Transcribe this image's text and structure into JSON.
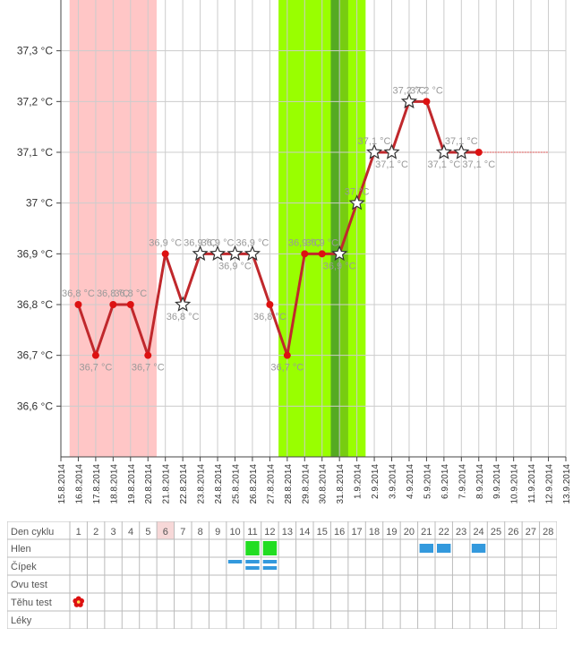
{
  "chart_data": {
    "type": "line",
    "title": "",
    "xlabel": "",
    "ylabel": "",
    "unit": "°C",
    "ylim": [
      36.5,
      37.4
    ],
    "y_ticks": [
      36.6,
      36.7,
      36.8,
      36.9,
      37.0,
      37.1,
      37.2,
      37.3
    ],
    "y_tick_labels": [
      "36,6 °C",
      "36,7 °C",
      "36,8 °C",
      "36,9 °C",
      "37 °C",
      "37,1 °C",
      "37,2 °C",
      "37,3 °C"
    ],
    "x_tick_labels": [
      "15.8.2014",
      "16.8.2014",
      "17.8.2014",
      "18.8.2014",
      "19.8.2014",
      "20.8.2014",
      "21.8.2014",
      "22.8.2014",
      "23.8.2014",
      "24.8.2014",
      "25.8.2014",
      "26.8.2014",
      "27.8.2014",
      "28.8.2014",
      "29.8.2014",
      "30.8.2014",
      "31.8.2014",
      "1.9.2014",
      "2.9.2014",
      "3.9.2014",
      "4.9.2014",
      "5.9.2014",
      "6.9.2014",
      "7.9.2014",
      "8.9.2014",
      "9.9.2014",
      "10.9.2014",
      "11.9.2014",
      "12.9.2014",
      "13.9.2014"
    ],
    "series": [
      {
        "values": [
          36.8,
          36.7,
          36.8,
          36.8,
          36.7,
          36.9,
          36.8,
          36.9,
          36.9,
          36.9,
          36.9,
          36.8,
          36.7,
          36.9,
          36.9,
          36.9,
          37.0,
          37.1,
          37.1,
          37.2,
          37.2,
          37.1,
          37.1,
          37.1
        ],
        "markers": [
          "dot",
          "dot",
          "dot",
          "dot",
          "dot",
          "dot",
          "star",
          "star",
          "star",
          "star",
          "star",
          "dot",
          "dot",
          "dot",
          "dot",
          "star",
          "star",
          "star",
          "star",
          "star",
          "dot",
          "star",
          "star",
          "dot"
        ],
        "labels": [
          "36,8 °C",
          "36,7 °C",
          "36,8 °C",
          "36,8 °C",
          "36,7 °C",
          "36,9 °C",
          "36,8 °C",
          "36,9 °C",
          "36,9 °C",
          "36,9 °C",
          "36,9 °C",
          "36,8 °C",
          "36,7 °C",
          "36,9 °C",
          "36,9 °C",
          "36,9 °C",
          "37 °C",
          "37,1 °C",
          "37,1 °C",
          "37,2 °C",
          "37,2 °C",
          "37,1 °C",
          "37,1 °C",
          "37,1 °C"
        ]
      }
    ],
    "color_line": "#c0282c",
    "color_dot": "#dd1111",
    "color_menses": "#ffc6c6",
    "color_fertile": "#99ff00",
    "color_peak_dark": "#55aa22",
    "color_peak_mid": "#77cc11",
    "menses_days": [
      1,
      2,
      3,
      4,
      5
    ],
    "fertile_days": [
      13,
      14,
      15,
      16,
      17
    ],
    "peak_day": 16,
    "grid": true
  },
  "table": {
    "header_label": "Den cyklu",
    "days": [
      "1",
      "2",
      "3",
      "4",
      "5",
      "6",
      "7",
      "8",
      "9",
      "10",
      "11",
      "12",
      "13",
      "14",
      "15",
      "16",
      "17",
      "18",
      "19",
      "20",
      "21",
      "22",
      "23",
      "24",
      "25",
      "26",
      "27",
      "28"
    ],
    "highlight_day": "6",
    "rows": [
      "Hlen",
      "Čípek",
      "Ovu test",
      "Těhu test",
      "Léky"
    ],
    "hlen_green": [
      11,
      12
    ],
    "hlen_blue": [
      21,
      22,
      24
    ],
    "cipek_single": [
      10
    ],
    "cipek_double": [
      11,
      12
    ],
    "tehu_flower_day": 1,
    "color_green": "#22dd22",
    "color_blue": "#3399dd",
    "color_flower": "#dd1111",
    "color_highlight": "#f7d8d8"
  }
}
